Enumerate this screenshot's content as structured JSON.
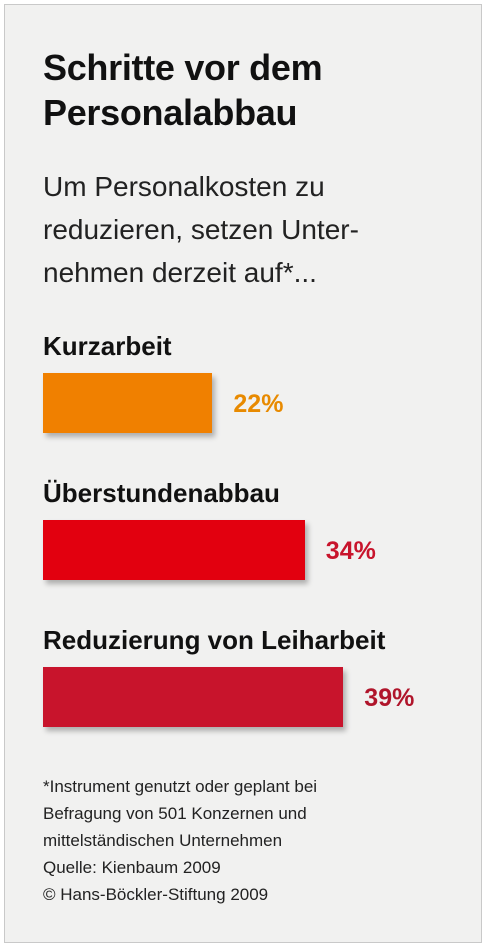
{
  "title_line1": "Schritte vor dem",
  "title_line2": "Personalabbau",
  "subtitle_line1": "Um Personalkosten zu",
  "subtitle_line2": "reduzieren, setzen Unter-",
  "subtitle_line3": "nehmen derzeit auf*...",
  "chart_data": {
    "type": "bar",
    "orientation": "horizontal",
    "categories": [
      "Kurzarbeit",
      "Überstundenabbau",
      "Reduzierung von Leiharbeit"
    ],
    "values": [
      22,
      34,
      39
    ],
    "value_labels": [
      "22%",
      "34%",
      "39%"
    ],
    "unit": "%",
    "bar_colors": [
      "#f08000",
      "#e2000f",
      "#c8142c"
    ],
    "label_colors": [
      "#e88a00",
      "#c8142c",
      "#b0152b"
    ],
    "grid": false,
    "legend": "none"
  },
  "footnote": {
    "line1": "*Instrument genutzt oder geplant bei",
    "line2": "Befragung von 501 Konzernen und",
    "line3": "mittelständischen Unternehmen",
    "source": "Quelle: Kienbaum 2009",
    "copyright": "© Hans-Böckler-Stiftung 2009"
  },
  "colors": {
    "background": "#f1f1f0",
    "text": "#111111"
  }
}
